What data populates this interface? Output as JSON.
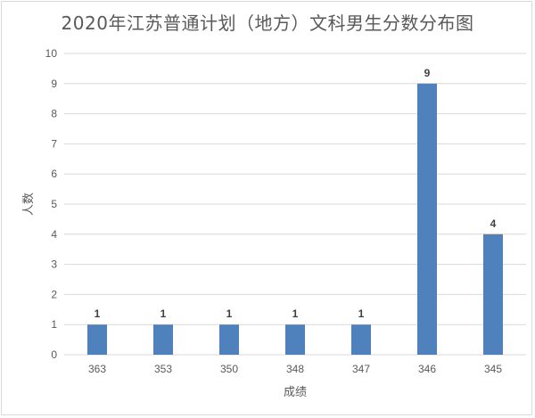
{
  "chart_data": {
    "type": "bar",
    "title": "2020年江苏普通计划（地方）文科男生分数分布图",
    "xlabel": "成绩",
    "ylabel": "人数",
    "categories": [
      "363",
      "353",
      "350",
      "348",
      "347",
      "346",
      "345"
    ],
    "values": [
      1,
      1,
      1,
      1,
      1,
      9,
      4
    ],
    "ylim": [
      0,
      10
    ],
    "yticks": [
      0,
      1,
      2,
      3,
      4,
      5,
      6,
      7,
      8,
      9,
      10
    ],
    "grid": true,
    "data_labels": true,
    "bar_color": "#4f81bd",
    "grid_color": "#d9d9d9"
  }
}
